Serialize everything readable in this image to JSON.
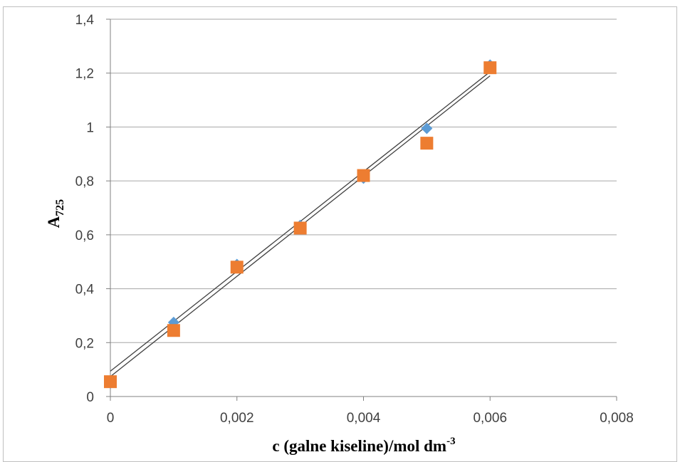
{
  "chart_data": {
    "type": "scatter",
    "title": "",
    "xlabel": "c (galne kiseline)/mol  dm",
    "xlabel_sup": "-3",
    "ylabel": "A",
    "ylabel_sub": "725",
    "xlim": [
      0,
      0.008
    ],
    "ylim": [
      0,
      1.4
    ],
    "x_ticks": [
      0,
      0.002,
      0.004,
      0.006,
      0.008
    ],
    "x_tick_labels": [
      "0",
      "0,002",
      "0,004",
      "0,006",
      "0,008"
    ],
    "y_ticks": [
      0,
      0.2,
      0.4,
      0.6,
      0.8,
      1.0,
      1.2,
      1.4
    ],
    "y_tick_labels": [
      "0",
      "0,2",
      "0,4",
      "0,6",
      "0,8",
      "1",
      "1,2",
      "1,4"
    ],
    "grid": "horizontal",
    "legend": "none",
    "series": [
      {
        "marker": "diamond",
        "color": "#5b9bd5",
        "x": [
          0,
          0.001,
          0.002,
          0.003,
          0.004,
          0.005,
          0.006
        ],
        "y": [
          0.05,
          0.275,
          0.49,
          0.635,
          0.81,
          0.995,
          1.23
        ]
      },
      {
        "marker": "square",
        "color": "#ed7d31",
        "x": [
          0,
          0.001,
          0.002,
          0.003,
          0.004,
          0.005,
          0.006
        ],
        "y": [
          0.055,
          0.245,
          0.48,
          0.625,
          0.82,
          0.94,
          1.22
        ]
      }
    ],
    "trendlines": [
      {
        "type": "linear",
        "color": "#404040",
        "x": [
          0,
          0.006
        ],
        "y": [
          0.094,
          1.205
        ]
      },
      {
        "type": "linear",
        "color": "#404040",
        "x": [
          0,
          0.006
        ],
        "y": [
          0.074,
          1.19
        ]
      }
    ]
  }
}
